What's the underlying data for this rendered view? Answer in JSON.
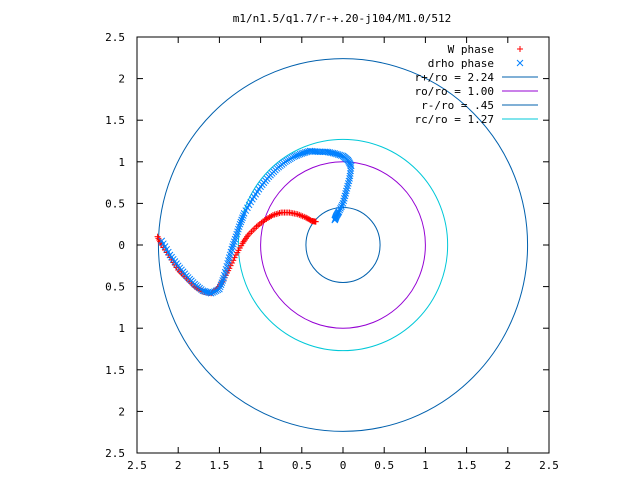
{
  "chart_data": {
    "type": "scatter",
    "title": "m1/n1.5/q1.7/r-+.20-j104/M1.0/512",
    "xlabel": "",
    "ylabel": "",
    "xlim": [
      -2.5,
      2.5
    ],
    "ylim": [
      -2.5,
      2.5
    ],
    "x_tick_values": [
      -2.5,
      -2,
      -1.5,
      -1,
      -0.5,
      0,
      0.5,
      1,
      1.5,
      2,
      2.5
    ],
    "x_tick_labels": [
      "2.5",
      "2",
      "1.5",
      "1",
      "0.5",
      "0",
      "0.5",
      "1",
      "1.5",
      "2",
      "2.5"
    ],
    "y_tick_values": [
      2.5,
      2,
      1.5,
      1,
      0.5,
      0,
      -0.5,
      -1,
      -1.5,
      -2,
      -2.5
    ],
    "y_tick_labels": [
      "2.5",
      "2",
      "1.5",
      "1",
      "0.5",
      "0",
      "0.5",
      "1",
      "1.5",
      "2",
      "2.5"
    ],
    "grid": false,
    "legend_position": "top-right",
    "series": [
      {
        "name": "W phase",
        "kind": "points",
        "marker": "plus",
        "color": "#ff0000",
        "x": [
          -2.25,
          -2.2,
          -2.1,
          -2.0,
          -1.9,
          -1.8,
          -1.7,
          -1.6,
          -1.52,
          -1.45,
          -1.38,
          -1.3,
          -1.22,
          -1.15,
          -1.05,
          -0.95,
          -0.85,
          -0.75,
          -0.65,
          -0.55,
          -0.45,
          -0.38,
          -0.33
        ],
        "y": [
          0.1,
          0.0,
          -0.15,
          -0.3,
          -0.4,
          -0.5,
          -0.56,
          -0.58,
          -0.52,
          -0.42,
          -0.28,
          -0.12,
          0.02,
          0.12,
          0.22,
          0.3,
          0.36,
          0.39,
          0.39,
          0.37,
          0.33,
          0.29,
          0.28
        ]
      },
      {
        "name": "drho phase",
        "kind": "points",
        "marker": "cross",
        "color": "#0080ff",
        "x": [
          -2.2,
          -2.1,
          -2.0,
          -1.9,
          -1.8,
          -1.7,
          -1.6,
          -1.5,
          -1.45,
          -1.4,
          -1.35,
          -1.3,
          -1.25,
          -1.2,
          -1.1,
          -1.0,
          -0.9,
          -0.8,
          -0.7,
          -0.6,
          -0.5,
          -0.4,
          -0.3,
          -0.2,
          -0.1,
          0.0,
          0.06,
          0.1,
          0.08,
          0.04,
          0.0,
          -0.05,
          -0.08,
          -0.1
        ],
        "y": [
          0.05,
          -0.12,
          -0.25,
          -0.37,
          -0.47,
          -0.55,
          -0.58,
          -0.53,
          -0.4,
          -0.22,
          -0.05,
          0.1,
          0.25,
          0.38,
          0.55,
          0.7,
          0.82,
          0.92,
          1.0,
          1.06,
          1.1,
          1.13,
          1.12,
          1.12,
          1.1,
          1.07,
          1.02,
          0.95,
          0.8,
          0.65,
          0.5,
          0.4,
          0.35,
          0.3
        ]
      },
      {
        "name": "r+/ro = 2.24",
        "kind": "circle",
        "radius": 2.24,
        "color": "#0060ad"
      },
      {
        "name": "ro/ro = 1.00",
        "kind": "circle",
        "radius": 1.0,
        "color": "#9400d3"
      },
      {
        "name": "r-/ro = .45",
        "kind": "circle",
        "radius": 0.45,
        "color": "#0060ad"
      },
      {
        "name": "rc/ro = 1.27",
        "kind": "circle",
        "radius": 1.27,
        "color": "#00c8d8"
      }
    ]
  }
}
